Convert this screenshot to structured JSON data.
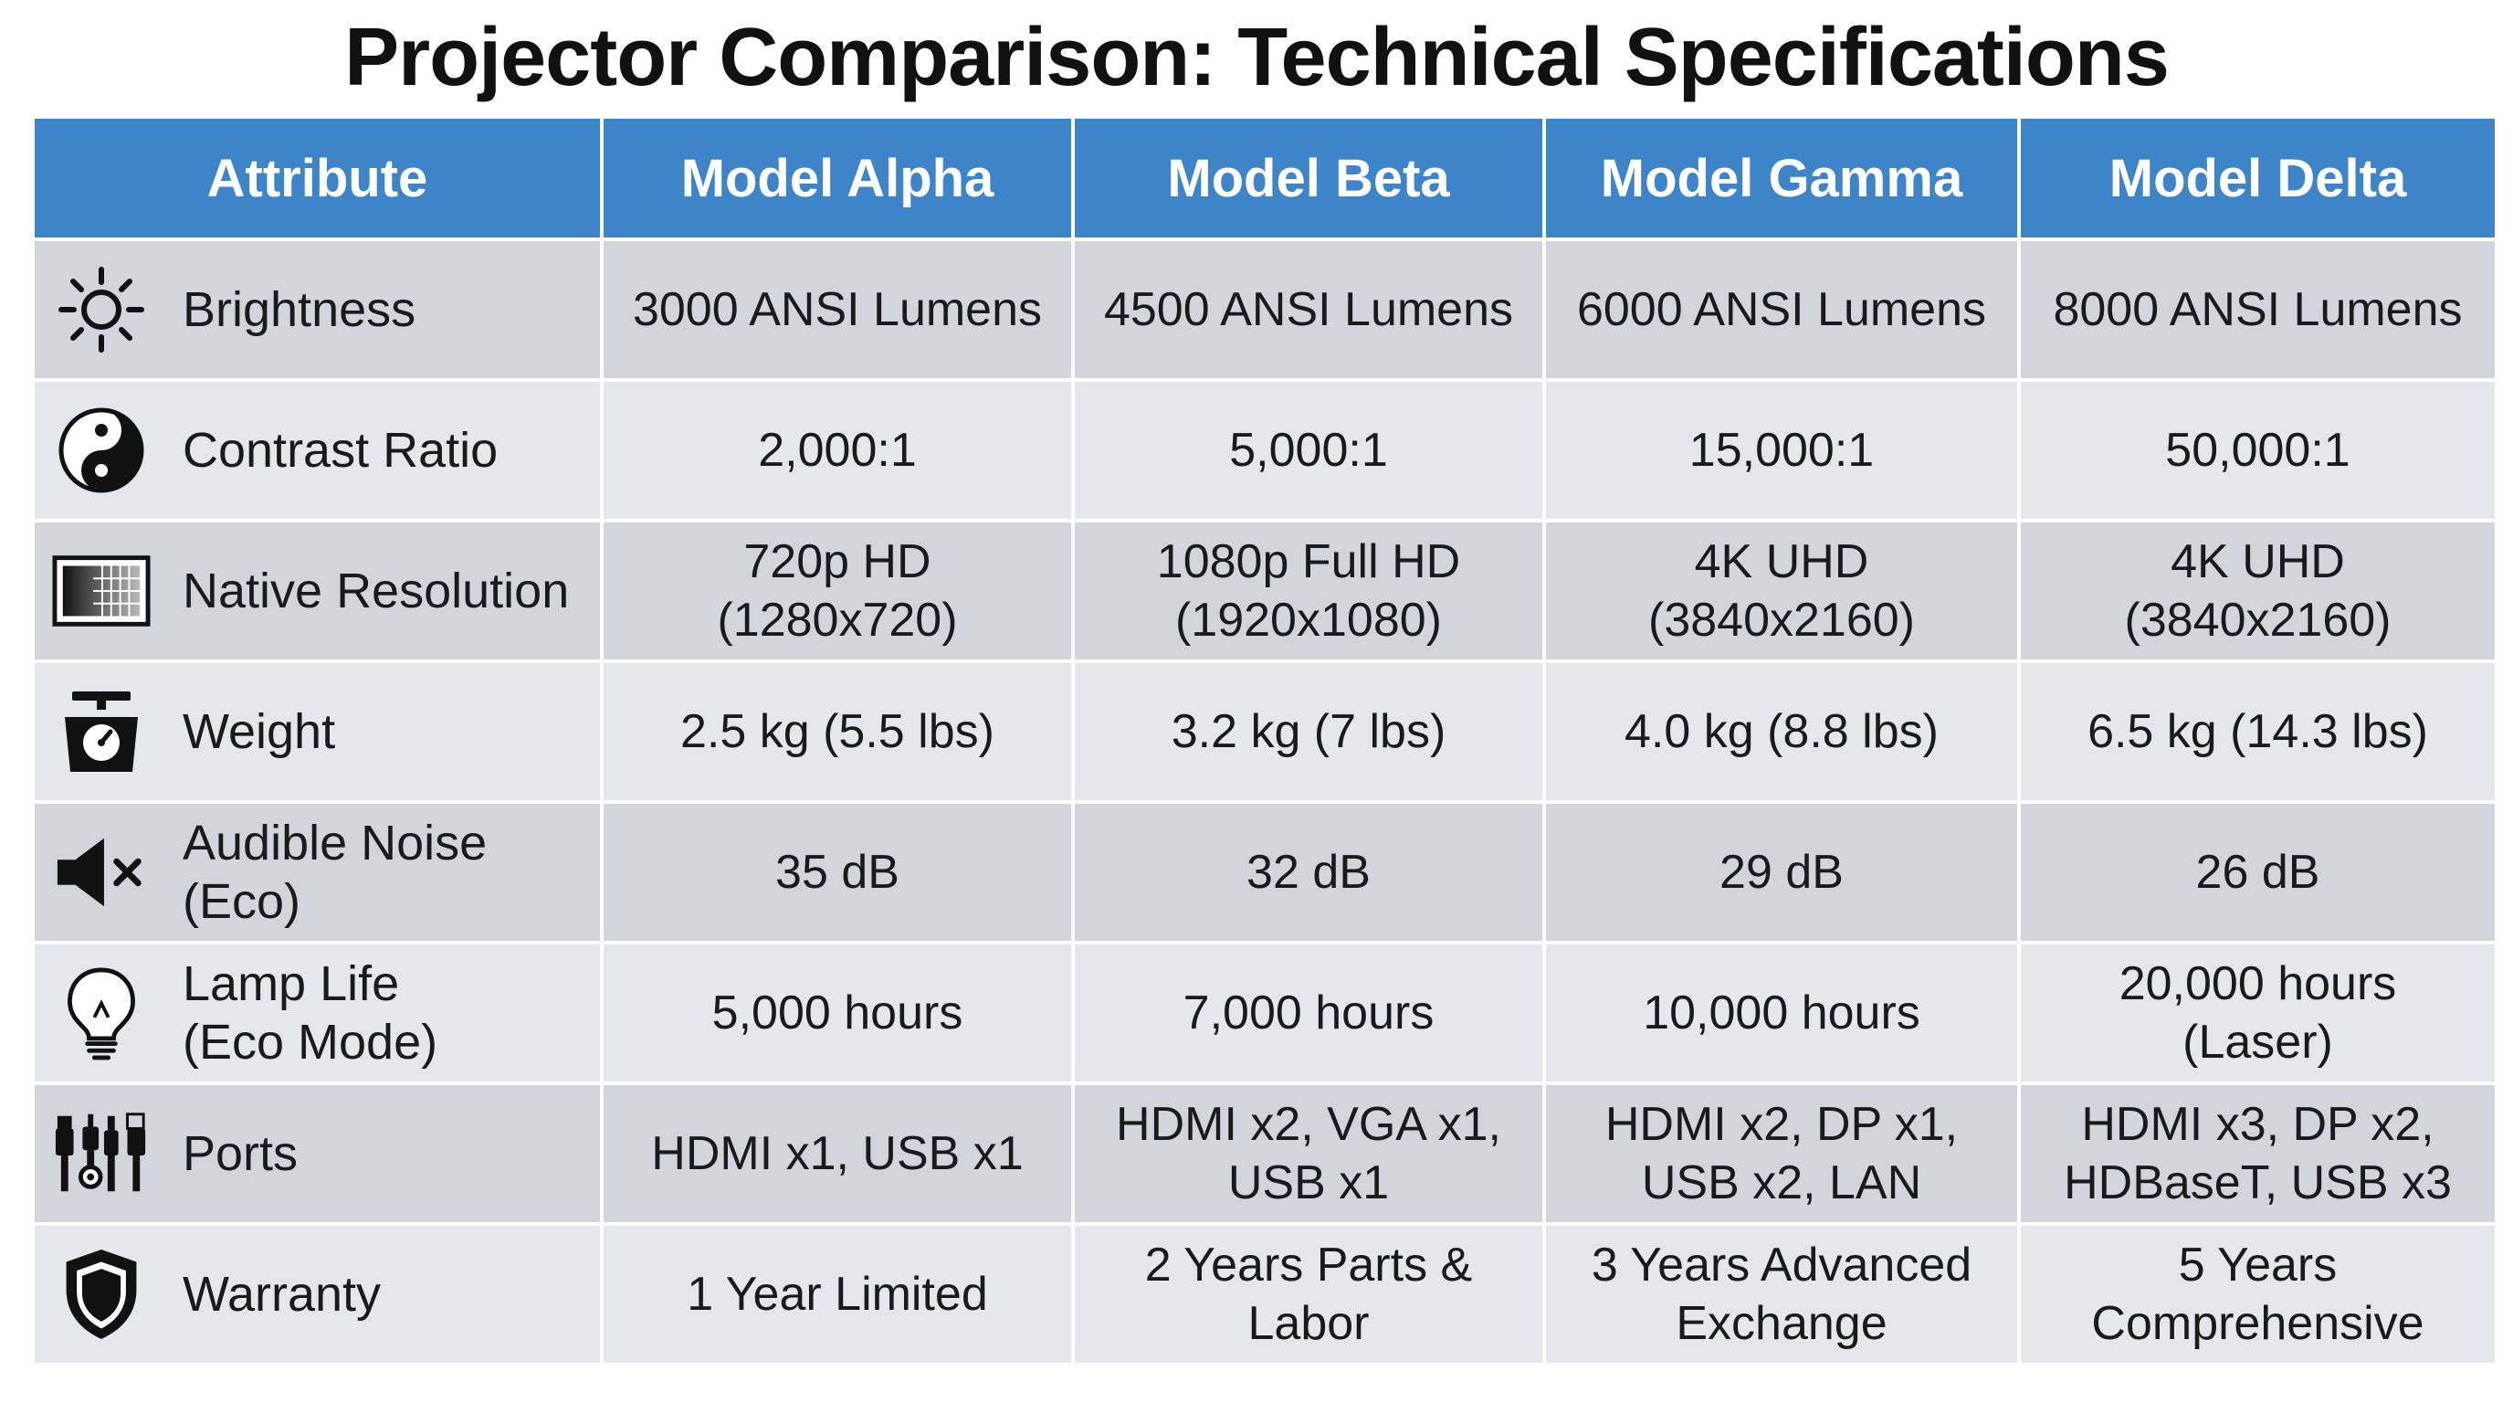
{
  "title": "Projector Comparison: Technical Specifications",
  "colors": {
    "header_bg": "#3d85c8",
    "header_text": "#ffffff",
    "row_dark": "#d2d6dc",
    "row_light": "#e4e7ec"
  },
  "headers": [
    "Attribute",
    "Model Alpha",
    "Model Beta",
    "Model Gamma",
    "Model Delta"
  ],
  "rows": [
    {
      "icon": "sun-icon",
      "attribute": "Brightness",
      "values": [
        "3000 ANSI Lumens",
        "4500 ANSI Lumens",
        "6000 ANSI Lumens",
        "8000 ANSI Lumens"
      ]
    },
    {
      "icon": "yin-yang-icon",
      "attribute": "Contrast Ratio",
      "values": [
        "2,000:1",
        "5,000:1",
        "15,000:1",
        "50,000:1"
      ]
    },
    {
      "icon": "resolution-grid-icon",
      "attribute": "Native Resolution",
      "values": [
        "720p HD\n(1280x720)",
        "1080p Full HD\n(1920x1080)",
        "4K UHD\n(3840x2160)",
        "4K UHD\n(3840x2160)"
      ]
    },
    {
      "icon": "scale-icon",
      "attribute": "Weight",
      "values": [
        "2.5 kg (5.5 lbs)",
        "3.2 kg (7 lbs)",
        "4.0 kg (8.8 lbs)",
        "6.5 kg (14.3 lbs)"
      ]
    },
    {
      "icon": "speaker-mute-icon",
      "attribute": "Audible Noise\n(Eco)",
      "values": [
        "35 dB",
        "32 dB",
        "29 dB",
        "26 dB"
      ]
    },
    {
      "icon": "lightbulb-icon",
      "attribute": "Lamp Life\n(Eco Mode)",
      "values": [
        "5,000 hours",
        "7,000 hours",
        "10,000 hours",
        "20,000 hours\n(Laser)"
      ]
    },
    {
      "icon": "ports-plugs-icon",
      "attribute": "Ports",
      "values": [
        "HDMI x1, USB x1",
        "HDMI x2, VGA x1,\nUSB x1",
        "HDMI x2, DP x1,\nUSB x2, LAN",
        "HDMI x3, DP x2,\nHDBaseT, USB x3"
      ]
    },
    {
      "icon": "shield-icon",
      "attribute": "Warranty",
      "values": [
        "1 Year Limited",
        "2 Years Parts &\nLabor",
        "3 Years Advanced\nExchange",
        "5 Years\nComprehensive"
      ]
    }
  ]
}
